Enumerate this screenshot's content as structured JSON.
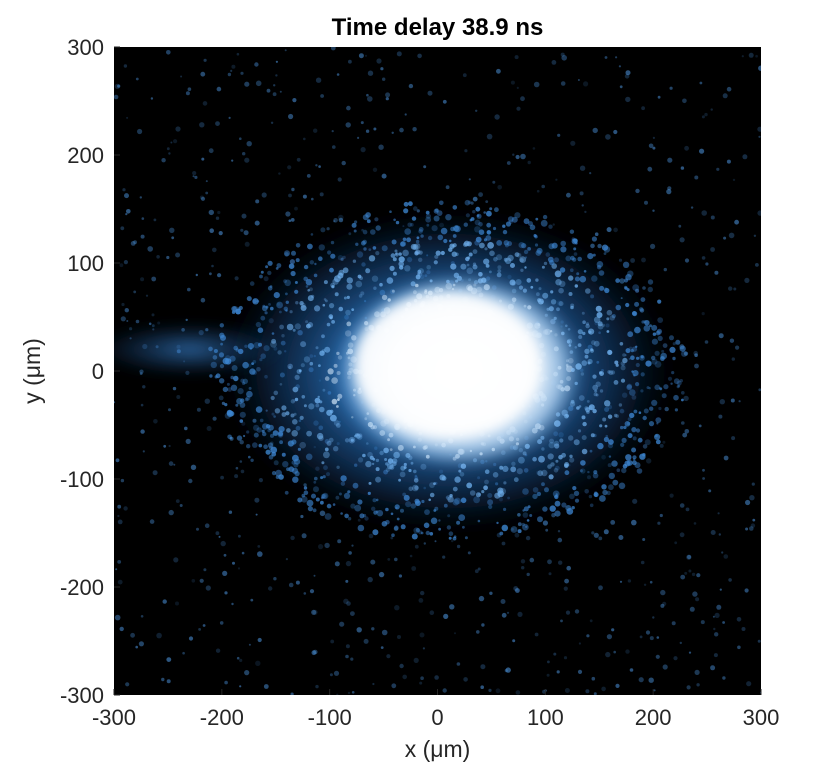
{
  "chart_data": {
    "type": "heatmap",
    "title": "Time delay 38.9 ns",
    "xlabel": "x (μm)",
    "ylabel": "y (μm)",
    "xlim": [
      -300,
      300
    ],
    "ylim": [
      -300,
      300
    ],
    "xticks": [
      -300,
      -200,
      -100,
      0,
      100,
      200,
      300
    ],
    "yticks": [
      -300,
      -200,
      -100,
      0,
      100,
      200,
      300
    ],
    "xtick_labels": [
      "-300",
      "-200",
      "-100",
      "0",
      "100",
      "200",
      "300"
    ],
    "ytick_labels": [
      "-300",
      "-200",
      "-100",
      "0",
      "100",
      "200",
      "300"
    ],
    "grid": false,
    "colormap": {
      "low": "#000000",
      "mid": "#2f7fd0",
      "high": "#f4f8fc"
    },
    "features": [
      {
        "name": "bright core",
        "center": [
          20,
          0
        ],
        "semi_axes": [
          115,
          90
        ]
      },
      {
        "name": "blue halo",
        "center": [
          10,
          0
        ],
        "semi_axes": [
          210,
          150
        ]
      },
      {
        "name": "left tail",
        "center": [
          -230,
          20
        ],
        "semi_axes": [
          90,
          25
        ]
      }
    ]
  }
}
